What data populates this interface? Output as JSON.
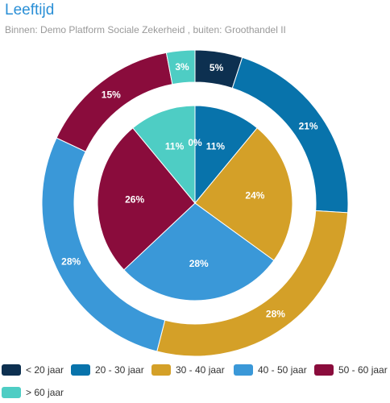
{
  "header": {
    "title": "Leeftijd",
    "subtitle": "Binnen: Demo Platform Sociale Zekerheid , buiten: Groothandel II"
  },
  "chart_data": {
    "type": "pie",
    "categories": [
      "< 20 jaar",
      "20 - 30 jaar",
      "30 - 40 jaar",
      "40 - 50 jaar",
      "50 - 60 jaar",
      "> 60 jaar"
    ],
    "colors": [
      "#0d3050",
      "#0873ab",
      "#d4a028",
      "#3a98d8",
      "#8a0c3c",
      "#4ecdc4"
    ],
    "series": [
      {
        "ring": "inner",
        "values": [
          0,
          11,
          24,
          28,
          26,
          11
        ],
        "labels": [
          "0%",
          "11%",
          "24%",
          "28%",
          "26%",
          "11%"
        ]
      },
      {
        "ring": "outer",
        "values": [
          5,
          21,
          28,
          28,
          15,
          3
        ],
        "labels": [
          "5%",
          "21%",
          "28%",
          "28%",
          "15%",
          "3%"
        ]
      }
    ],
    "legend_position": "bottom"
  }
}
